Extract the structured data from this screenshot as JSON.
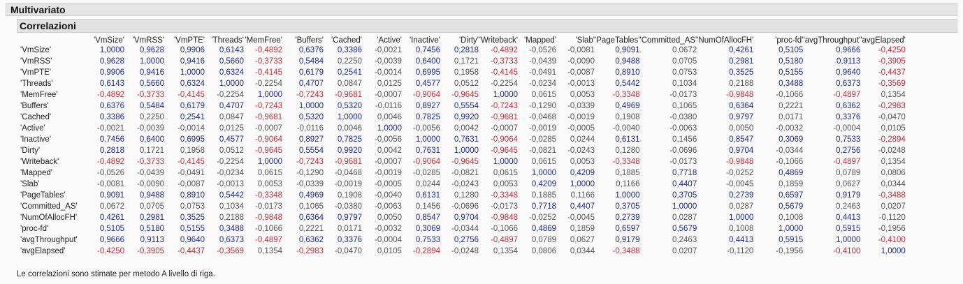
{
  "report": {
    "title": "Multivariato",
    "section_title": "Correlazioni",
    "footer": "Le correlazioni sono stimate per metodo A livello di riga."
  },
  "columns": [
    "'VmSize'",
    "'VmRSS'",
    "'VmPTE'",
    "'Threads'",
    "'MemFree'",
    "'Buffers'",
    "'Cached'",
    "'Active'",
    "'Inactive'",
    "'Dirty'",
    "'Writeback'",
    "'Mapped'",
    "'Slab'",
    "'PageTables'",
    "'Committed_AS'",
    "'NumOfAllocFH'",
    "'proc-fd'",
    "'avgThroughput'",
    "'avgElapsed'"
  ],
  "rows": [
    {
      "label": "'VmSize'",
      "values": [
        "1,0000",
        "0,9628",
        "0,9906",
        "0,6143",
        "-0,4892",
        "0,6376",
        "0,3386",
        "-0,0021",
        "0,7456",
        "0,2818",
        "-0,4892",
        "-0,0526",
        "-0,0081",
        "0,9091",
        "0,0672",
        "0,4261",
        "0,5105",
        "0,9666",
        "-0,4250"
      ]
    },
    {
      "label": "'VmRSS'",
      "values": [
        "0,9628",
        "1,0000",
        "0,9416",
        "0,5660",
        "-0,3733",
        "0,5484",
        "0,2250",
        "-0,0039",
        "0,6400",
        "0,1721",
        "-0,3733",
        "-0,0439",
        "-0,0090",
        "0,9488",
        "0,0705",
        "0,2981",
        "0,5180",
        "0,9113",
        "-0,3905"
      ]
    },
    {
      "label": "'VmPTE'",
      "values": [
        "0,9906",
        "0,9416",
        "1,0000",
        "0,6324",
        "-0,4145",
        "0,6179",
        "0,2541",
        "-0,0014",
        "0,6995",
        "0,1958",
        "-0,4145",
        "-0,0491",
        "-0,0087",
        "0,8910",
        "0,0753",
        "0,3525",
        "0,5155",
        "0,9640",
        "-0,4437"
      ]
    },
    {
      "label": "'Threads'",
      "values": [
        "0,6143",
        "0,5660",
        "0,6324",
        "1,0000",
        "-0,2254",
        "0,4707",
        "0,0847",
        "0,0125",
        "0,4577",
        "0,0512",
        "-0,2254",
        "-0,0234",
        "-0,0013",
        "0,5442",
        "0,1034",
        "0,2188",
        "0,3488",
        "0,6373",
        "-0,3569"
      ]
    },
    {
      "label": "'MemFree'",
      "values": [
        "-0,4892",
        "-0,3733",
        "-0,4145",
        "-0,2254",
        "1,0000",
        "-0,7243",
        "-0,9681",
        "-0,0007",
        "-0,9064",
        "-0,9645",
        "1,0000",
        "0,0615",
        "0,0053",
        "-0,3348",
        "-0,0173",
        "-0,9848",
        "-0,1066",
        "-0,4897",
        "0,1354"
      ]
    },
    {
      "label": "'Buffers'",
      "values": [
        "0,6376",
        "0,5484",
        "0,6179",
        "0,4707",
        "-0,7243",
        "1,0000",
        "0,5320",
        "-0,0116",
        "0,8927",
        "0,5554",
        "-0,7243",
        "-0,1290",
        "-0,0339",
        "0,4969",
        "0,1065",
        "0,6364",
        "0,2221",
        "0,6362",
        "-0,2983"
      ]
    },
    {
      "label": "'Cached'",
      "values": [
        "0,3386",
        "0,2250",
        "0,2541",
        "0,0847",
        "-0,9681",
        "0,5320",
        "1,0000",
        "0,0046",
        "0,7825",
        "0,9920",
        "-0,9681",
        "-0,0468",
        "-0,0019",
        "0,1908",
        "-0,0380",
        "0,9797",
        "0,0171",
        "0,3376",
        "-0,0470"
      ]
    },
    {
      "label": "'Active'",
      "values": [
        "-0,0021",
        "-0,0039",
        "-0,0014",
        "0,0125",
        "-0,0007",
        "-0,0116",
        "0,0046",
        "1,0000",
        "-0,0056",
        "0,0042",
        "-0,0007",
        "-0,0019",
        "-0,0005",
        "-0,0040",
        "-0,0063",
        "0,0050",
        "-0,0032",
        "-0,0004",
        "0,0105"
      ]
    },
    {
      "label": "'Inactive'",
      "values": [
        "0,7456",
        "0,6400",
        "0,6995",
        "0,4577",
        "-0,9064",
        "0,8927",
        "0,7825",
        "-0,0056",
        "1,0000",
        "0,7631",
        "-0,9064",
        "-0,0285",
        "0,0244",
        "0,6131",
        "0,1456",
        "0,8547",
        "0,3069",
        "0,7533",
        "-0,2894"
      ]
    },
    {
      "label": "'Dirty'",
      "values": [
        "0,2818",
        "0,1721",
        "0,1958",
        "0,0512",
        "-0,9645",
        "0,5554",
        "0,9920",
        "0,0042",
        "0,7631",
        "1,0000",
        "-0,9645",
        "-0,0821",
        "-0,0243",
        "0,1280",
        "-0,0696",
        "0,9704",
        "-0,0344",
        "0,2756",
        "-0,0248"
      ]
    },
    {
      "label": "'Writeback'",
      "values": [
        "-0,4892",
        "-0,3733",
        "-0,4145",
        "-0,2254",
        "1,0000",
        "-0,7243",
        "-0,9681",
        "-0,0007",
        "-0,9064",
        "-0,9645",
        "1,0000",
        "0,0615",
        "0,0053",
        "-0,3348",
        "-0,0173",
        "-0,9848",
        "-0,1066",
        "-0,4897",
        "0,1354"
      ]
    },
    {
      "label": "'Mapped'",
      "values": [
        "-0,0526",
        "-0,0439",
        "-0,0491",
        "-0,0234",
        "0,0615",
        "-0,1290",
        "-0,0468",
        "-0,0019",
        "-0,0285",
        "-0,0821",
        "0,0615",
        "1,0000",
        "0,4209",
        "0,1885",
        "0,7718",
        "-0,0252",
        "0,4869",
        "0,0789",
        "0,0806"
      ]
    },
    {
      "label": "'Slab'",
      "values": [
        "-0,0081",
        "-0,0090",
        "-0,0087",
        "-0,0013",
        "0,0053",
        "-0,0339",
        "-0,0019",
        "-0,0005",
        "0,0244",
        "-0,0243",
        "0,0053",
        "0,4209",
        "1,0000",
        "0,1166",
        "0,4407",
        "-0,0045",
        "0,1859",
        "0,0627",
        "0,0344"
      ]
    },
    {
      "label": "'PageTables'",
      "values": [
        "0,9091",
        "0,9488",
        "0,8910",
        "0,5442",
        "-0,3348",
        "0,4969",
        "0,1908",
        "-0,0040",
        "0,6131",
        "0,1280",
        "-0,3348",
        "0,1885",
        "0,1166",
        "1,0000",
        "0,3705",
        "0,2739",
        "0,6597",
        "0,9179",
        "-0,3488"
      ]
    },
    {
      "label": "'Committed_AS'",
      "values": [
        "0,0672",
        "0,0705",
        "0,0753",
        "0,1034",
        "-0,0173",
        "0,1065",
        "-0,0380",
        "-0,0063",
        "0,1456",
        "-0,0696",
        "-0,0173",
        "0,7718",
        "0,4407",
        "0,3705",
        "1,0000",
        "0,0287",
        "0,5679",
        "0,2463",
        "0,0207"
      ]
    },
    {
      "label": "'NumOfAllocFH'",
      "values": [
        "0,4261",
        "0,2981",
        "0,3525",
        "0,2188",
        "-0,9848",
        "0,6364",
        "0,9797",
        "0,0050",
        "0,8547",
        "0,9704",
        "-0,9848",
        "-0,0252",
        "-0,0045",
        "0,2739",
        "0,0287",
        "1,0000",
        "0,1008",
        "0,4413",
        "-0,1120"
      ]
    },
    {
      "label": "'proc-fd'",
      "values": [
        "0,5105",
        "0,5180",
        "0,5155",
        "0,3488",
        "-0,1066",
        "0,2221",
        "0,0171",
        "-0,0032",
        "0,3069",
        "-0,0344",
        "-0,1066",
        "0,4869",
        "0,1859",
        "0,6597",
        "0,5679",
        "0,1008",
        "1,0000",
        "0,5915",
        "-0,1956"
      ]
    },
    {
      "label": "'avgThroughput'",
      "values": [
        "0,9666",
        "0,9113",
        "0,9640",
        "0,6373",
        "-0,4897",
        "0,6362",
        "0,3376",
        "-0,0004",
        "0,7533",
        "0,2756",
        "-0,4897",
        "0,0789",
        "0,0627",
        "0,9179",
        "0,2463",
        "0,4413",
        "0,5915",
        "1,0000",
        "-0,4100"
      ]
    },
    {
      "label": "'avgElapsed'",
      "values": [
        "-0,4250",
        "-0,3905",
        "-0,4437",
        "-0,3569",
        "0,1354",
        "-0,2983",
        "-0,0470",
        "0,0105",
        "-0,2894",
        "-0,0248",
        "0,1354",
        "0,0806",
        "0,0344",
        "-0,3488",
        "0,0207",
        "-0,1120",
        "-0,1956",
        "-0,4100",
        "1,0000"
      ]
    }
  ],
  "colors": {
    "positive_strong": "#1f2a8c",
    "negative_strong": "#b8323c",
    "weak": "#555555"
  }
}
